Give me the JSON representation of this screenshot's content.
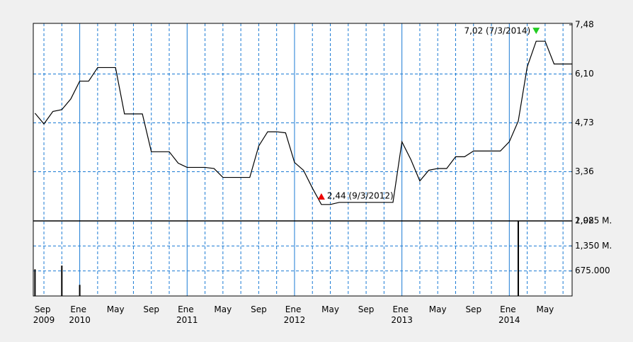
{
  "chart_data": [
    {
      "type": "line",
      "categories": [
        null,
        "Sep 2009",
        null,
        null,
        null,
        "Ene 2010",
        null,
        null,
        null,
        "May",
        null,
        null,
        null,
        "Sep",
        null,
        null,
        null,
        "Ene 2011",
        null,
        null,
        null,
        "May",
        null,
        null,
        null,
        "Sep",
        null,
        null,
        null,
        "Ene 2012",
        null,
        null,
        null,
        "May",
        null,
        null,
        null,
        "Sep",
        null,
        null,
        null,
        "Ene 2013",
        null,
        null,
        null,
        "May",
        null,
        null,
        null,
        "Sep",
        null,
        null,
        null,
        "Ene 2014",
        null,
        null,
        null,
        "May",
        null,
        null,
        null
      ],
      "values": [
        5.0,
        4.7,
        5.05,
        5.1,
        5.4,
        5.9,
        5.9,
        6.28,
        6.28,
        6.28,
        4.98,
        4.98,
        4.98,
        3.92,
        3.92,
        3.92,
        3.6,
        3.48,
        3.48,
        3.48,
        3.45,
        3.2,
        3.2,
        3.2,
        3.2,
        4.08,
        4.48,
        4.48,
        4.45,
        3.62,
        3.4,
        2.9,
        2.44,
        2.44,
        2.5,
        2.5,
        2.5,
        2.5,
        2.5,
        2.5,
        2.5,
        4.2,
        3.7,
        3.1,
        3.4,
        3.45,
        3.45,
        3.78,
        3.78,
        3.94,
        3.94,
        3.94,
        3.94,
        4.2,
        4.78,
        6.3,
        7.02,
        7.02,
        6.38,
        6.38,
        6.38
      ],
      "color": "#000000",
      "ylim": [
        1.98,
        7.48
      ],
      "yticks": [
        {
          "value": 7.48,
          "label": "7,48"
        },
        {
          "value": 6.1,
          "label": "6,10"
        },
        {
          "value": 4.73,
          "label": "4,73"
        },
        {
          "value": 3.36,
          "label": "3,36"
        },
        {
          "value": 1.98,
          "label": "1,98"
        }
      ],
      "grid": true,
      "annotations": [
        {
          "text": "7,02 (7/3/2014)",
          "value": 7.02,
          "color": "#22cc22"
        },
        {
          "text": "2,44 (9/3/2012)",
          "value": 2.44,
          "color": "#ee0000"
        }
      ]
    },
    {
      "type": "bar",
      "values": [
        720000,
        0,
        0,
        820000,
        0,
        300000,
        0,
        0,
        0,
        0,
        0,
        0,
        0,
        0,
        0,
        0,
        0,
        0,
        0,
        0,
        0,
        0,
        0,
        0,
        0,
        0,
        0,
        0,
        0,
        0,
        0,
        0,
        0,
        0,
        0,
        0,
        0,
        0,
        0,
        0,
        0,
        0,
        0,
        0,
        0,
        0,
        0,
        0,
        0,
        0,
        0,
        0,
        0,
        0,
        2025000,
        0,
        0,
        0,
        0,
        0,
        0
      ],
      "color": "#000000",
      "ylim": [
        0,
        2025000
      ],
      "yticks": [
        {
          "value": 2025000,
          "label": "2,025 M."
        },
        {
          "value": 1350000,
          "label": "1,350 M."
        },
        {
          "value": 675000,
          "label": "675.000"
        }
      ],
      "grid": true
    }
  ]
}
